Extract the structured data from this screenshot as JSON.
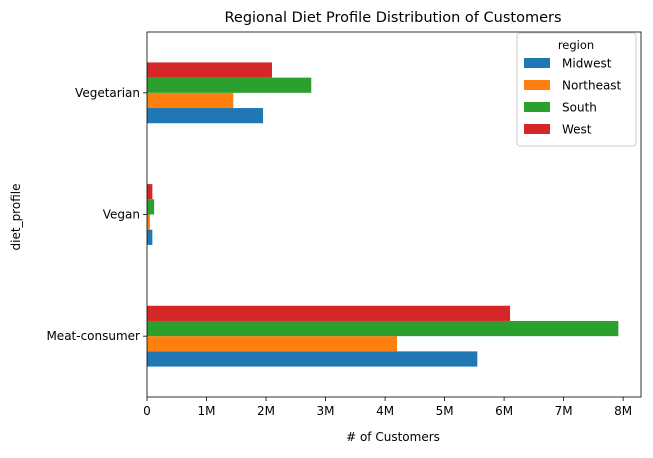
{
  "chart_data": {
    "type": "bar",
    "orientation": "horizontal",
    "title": "Regional Diet Profile Distribution of Customers",
    "xlabel": "# of Customers",
    "ylabel": "diet_profile",
    "categories": [
      "Meat-consumer",
      "Vegan",
      "Vegetarian"
    ],
    "series": [
      {
        "name": "Midwest",
        "color": "#1f77b4",
        "values": [
          5550000,
          90000,
          1950000
        ]
      },
      {
        "name": "Northeast",
        "color": "#ff7f0e",
        "values": [
          4200000,
          50000,
          1450000
        ]
      },
      {
        "name": "South",
        "color": "#2ca02c",
        "values": [
          7920000,
          120000,
          2760000
        ]
      },
      {
        "name": "West",
        "color": "#d62728",
        "values": [
          6100000,
          90000,
          2100000
        ]
      }
    ],
    "xlim": [
      0,
      8300000
    ],
    "xticks": [
      0,
      1000000,
      2000000,
      3000000,
      4000000,
      5000000,
      6000000,
      7000000,
      8000000
    ],
    "xtick_labels": [
      "0",
      "1M",
      "2M",
      "3M",
      "4M",
      "5M",
      "6M",
      "7M",
      "8M"
    ],
    "legend": {
      "title": "region",
      "placement": "top-right"
    },
    "grid": false
  }
}
